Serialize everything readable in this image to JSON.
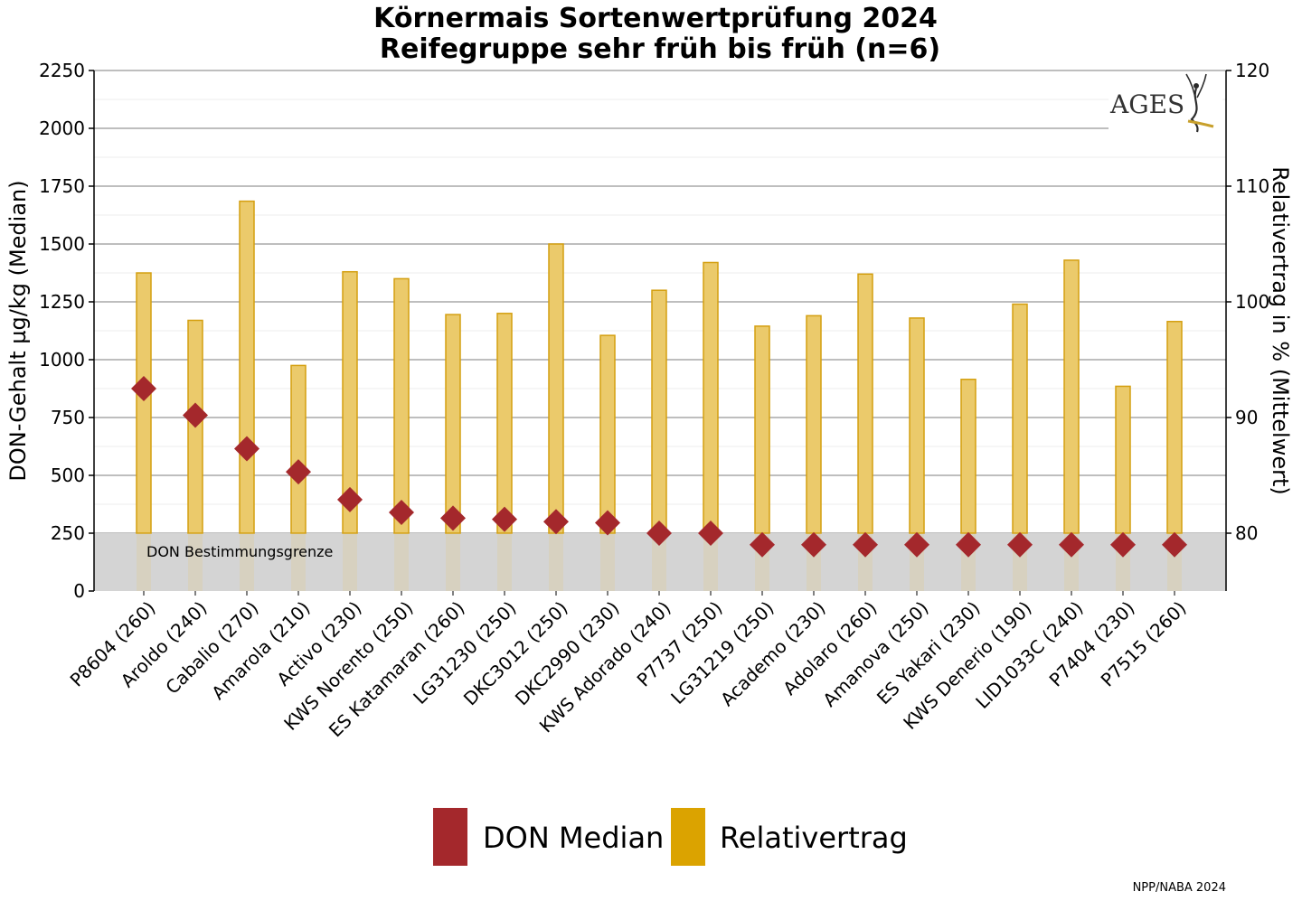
{
  "chart_data": {
    "type": "bar",
    "title_line1": "Körnermais Sortenwertprüfung 2024",
    "title_line2": "Reifegruppe sehr früh bis früh (n=6)",
    "ylabel_left": "DON-Gehalt µg/kg (Median)",
    "ylabel_right": "Relativertrag in % (Mittelwert)",
    "ylim_left": [
      0,
      2250
    ],
    "ylim_right": [
      75,
      120
    ],
    "yticks_left": [
      "0",
      "250",
      "500",
      "750",
      "1000",
      "1250",
      "1500",
      "1750",
      "2000",
      "2250"
    ],
    "yticks_right": [
      "80",
      "90",
      "100",
      "110",
      "120"
    ],
    "grid": true,
    "threshold": {
      "label": "DON Bestimmungsgrenze",
      "value": 250
    },
    "categories": [
      "P8604 (260)",
      "Aroldo (240)",
      "Cabalio (270)",
      "Amarola (210)",
      "Activo (230)",
      "KWS Norento (250)",
      "ES Katamaran (260)",
      "LG31230 (250)",
      "DKC3012 (250)",
      "DKC2990 (230)",
      "KWS Adorado (240)",
      "P7737 (250)",
      "LG31219 (250)",
      "Academo (230)",
      "Adolaro (260)",
      "Amanova (250)",
      "ES Yakari (230)",
      "KWS Denerio (190)",
      "LID1033C (240)",
      "P7404 (230)",
      "P7515 (260)"
    ],
    "series": [
      {
        "name": "DON Median",
        "axis": "left",
        "marker": "diamond",
        "color": "#a4282c",
        "values": [
          875,
          760,
          615,
          515,
          395,
          340,
          315,
          310,
          300,
          295,
          250,
          250,
          200,
          200,
          200,
          200,
          200,
          200,
          200,
          200,
          200
        ]
      },
      {
        "name": "Relativertrag",
        "axis": "right",
        "marker": "bar",
        "color": "#dba300",
        "values": [
          102.5,
          98.4,
          108.7,
          94.5,
          102.6,
          102.0,
          98.9,
          99.0,
          105.0,
          97.1,
          101.0,
          103.4,
          97.9,
          98.8,
          102.4,
          98.6,
          93.3,
          99.8,
          103.6,
          92.7,
          98.3
        ]
      }
    ],
    "legend_position": "bottom-center",
    "logo_text": "AGES",
    "source_note": "NPP/NABA 2024"
  },
  "colors": {
    "don": "#a4282c",
    "yield_fill": "#ebca6b",
    "yield_stroke": "#d49f10",
    "legend_yield": "#dba300",
    "threshold_band": "#d4d4d4",
    "grid_major": "#a8a8a8",
    "grid_minor": "#ececec"
  }
}
